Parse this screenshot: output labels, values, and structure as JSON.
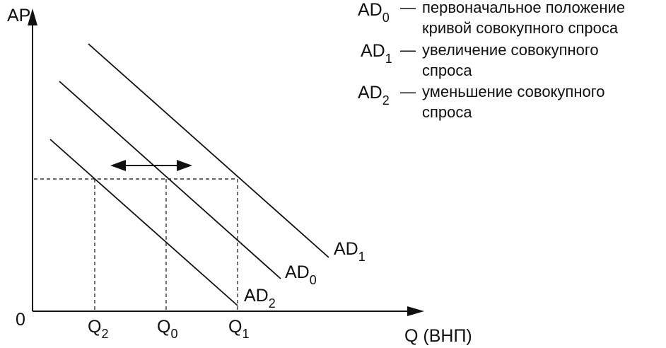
{
  "axes": {
    "y_label": "AP",
    "x_label": "Q (ВНП)",
    "origin_label": "0"
  },
  "curves": [
    {
      "id": "AD1",
      "name": "AD",
      "sub": "1"
    },
    {
      "id": "AD0",
      "name": "AD",
      "sub": "0"
    },
    {
      "id": "AD2",
      "name": "AD",
      "sub": "2"
    }
  ],
  "quantities": [
    {
      "id": "Q2",
      "name": "Q",
      "sub": "2"
    },
    {
      "id": "Q0",
      "name": "Q",
      "sub": "0"
    },
    {
      "id": "Q1",
      "name": "Q",
      "sub": "1"
    }
  ],
  "legend": [
    {
      "name": "AD",
      "sub": "0",
      "dash": "—",
      "line1": "первоначальное положение",
      "line2": "кривой совокупного спроса"
    },
    {
      "name": "AD",
      "sub": "1",
      "dash": "—",
      "line1": "увеличение совокупного",
      "line2": "спроса"
    },
    {
      "name": "AD",
      "sub": "2",
      "dash": "—",
      "line1": "уменьшение совокупного",
      "line2": "спроса"
    }
  ],
  "colors": {
    "ink": "#111111"
  }
}
